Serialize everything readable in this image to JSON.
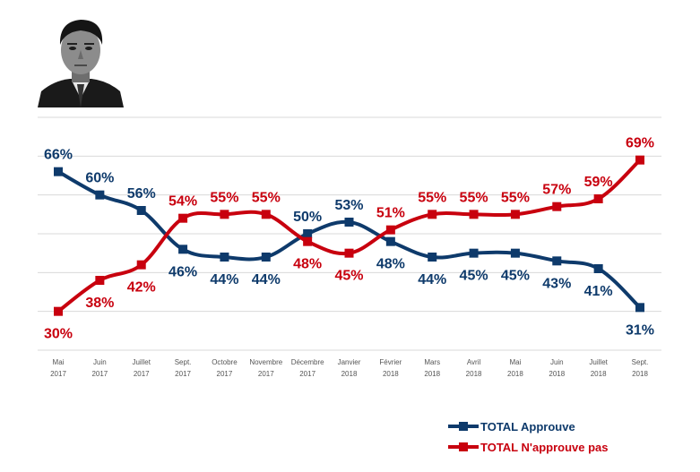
{
  "colors": {
    "approve": "#0e3a6b",
    "disapprove": "#c8000e",
    "grid": "#d9d9d9",
    "tick": "#555555"
  },
  "portrait": {
    "icon": "man-portrait-photo"
  },
  "chart_data": {
    "type": "line",
    "title": "",
    "xlabel": "",
    "ylabel": "",
    "ylim": [
      20,
      80
    ],
    "grid": true,
    "legend_position": "bottom-right",
    "categories": [
      [
        "Mai",
        "2017"
      ],
      [
        "Juin",
        "2017"
      ],
      [
        "Juillet",
        "2017"
      ],
      [
        "Sept.",
        "2017"
      ],
      [
        "Octobre",
        "2017"
      ],
      [
        "Novembre",
        "2017"
      ],
      [
        "Décembre",
        "2017"
      ],
      [
        "Janvier",
        "2018"
      ],
      [
        "Février",
        "2018"
      ],
      [
        "Mars",
        "2018"
      ],
      [
        "Avril",
        "2018"
      ],
      [
        "Mai",
        "2018"
      ],
      [
        "Juin",
        "2018"
      ],
      [
        "Juillet",
        "2018"
      ],
      [
        "Sept.",
        "2018"
      ]
    ],
    "series": [
      {
        "name": "TOTAL Approuve",
        "color": "#0e3a6b",
        "values": [
          66,
          60,
          56,
          46,
          44,
          44,
          50,
          53,
          48,
          44,
          45,
          45,
          43,
          41,
          31
        ],
        "labels": [
          "66%",
          "60%",
          "56%",
          "46%",
          "44%",
          "44%",
          "50%",
          "53%",
          "48%",
          "44%",
          "45%",
          "45%",
          "43%",
          "41%",
          "31%"
        ]
      },
      {
        "name": "TOTAL N'approuve pas",
        "color": "#c8000e",
        "values": [
          30,
          38,
          42,
          54,
          55,
          55,
          48,
          45,
          51,
          55,
          55,
          55,
          57,
          59,
          69
        ],
        "labels": [
          "30%",
          "38%",
          "42%",
          "54%",
          "55%",
          "55%",
          "48%",
          "45%",
          "51%",
          "55%",
          "55%",
          "55%",
          "57%",
          "59%",
          "69%"
        ]
      }
    ]
  }
}
